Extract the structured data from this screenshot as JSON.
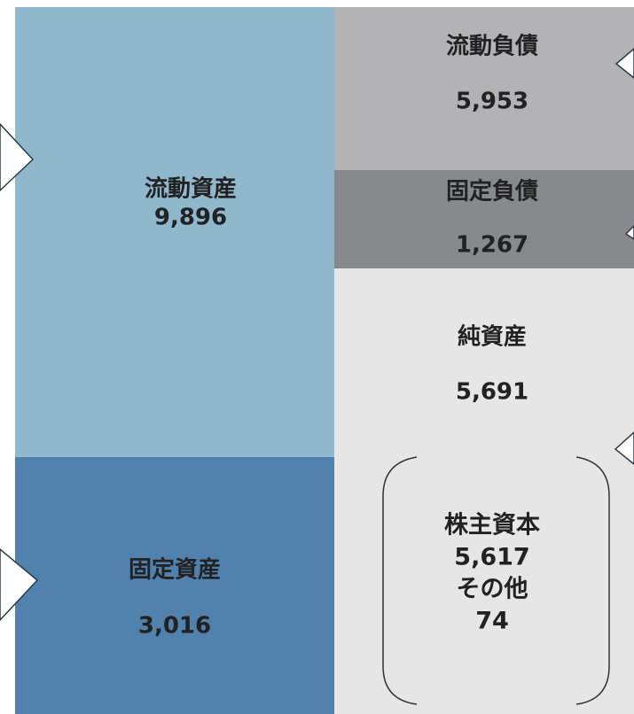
{
  "assets": [
    {
      "label": "流動資産",
      "value": "9,896"
    },
    {
      "label": "固定資産",
      "value": "3,016"
    }
  ],
  "liabilities": [
    {
      "label": "流動負債",
      "value": "5,953"
    },
    {
      "label": "固定負債",
      "value": "1,267"
    }
  ],
  "net_assets": {
    "label": "純資産",
    "value": "5,691"
  },
  "equity_breakdown": [
    {
      "label": "株主資本",
      "value": "5,617"
    },
    {
      "label": "その他",
      "value": "74"
    }
  ]
}
